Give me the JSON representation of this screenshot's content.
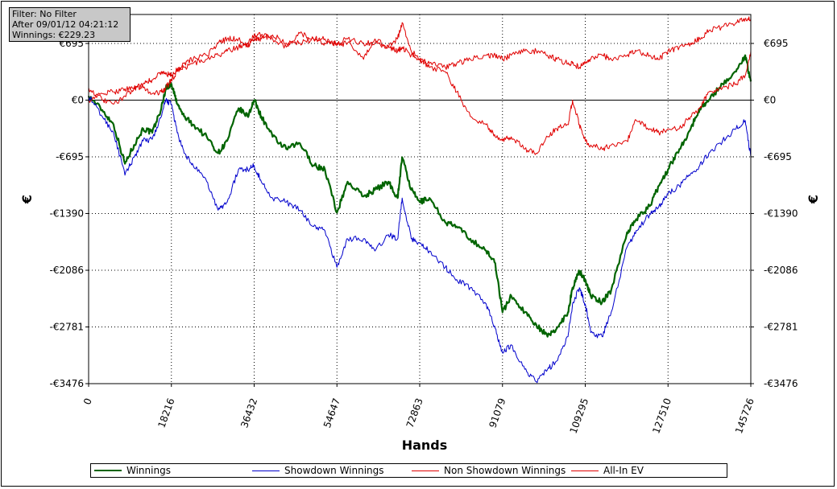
{
  "filter_box": {
    "line1": "Filter: No Filter",
    "line2": "After 09/01/12 04:21:12",
    "line3": "Winnings: €229.23"
  },
  "chart_data": {
    "type": "line",
    "title": "",
    "xlabel": "Hands",
    "ylabel": "€",
    "xlim": [
      0,
      145726
    ],
    "ylim": [
      -3476,
      1050
    ],
    "x_ticks": [
      0,
      18216,
      36432,
      54647,
      72863,
      91079,
      109295,
      127510,
      145726
    ],
    "y_ticks": [
      695,
      0,
      -695,
      -1390,
      -2086,
      -2781,
      -3476
    ],
    "y_tick_labels": [
      "€695",
      "€0",
      "-€695",
      "-€1390",
      "-€2086",
      "-€2781",
      "-€3476"
    ],
    "grid": true,
    "legend_position": "bottom",
    "series": [
      {
        "name": "Winnings",
        "color": "#006400",
        "x": [
          0,
          3000,
          5500,
          8000,
          10000,
          12000,
          14000,
          16000,
          17000,
          18216,
          19500,
          21000,
          23000,
          26000,
          28500,
          30500,
          33000,
          35000,
          36432,
          38000,
          40500,
          43500,
          46500,
          49500,
          52000,
          54647,
          57000,
          60500,
          63000,
          66000,
          68000,
          69000,
          71000,
          72863,
          75000,
          78500,
          81000,
          84000,
          87500,
          89500,
          91079,
          93000,
          96000,
          98500,
          101000,
          103000,
          105500,
          106500,
          108000,
          109295,
          110500,
          113000,
          115000,
          118500,
          120500,
          123500,
          125500,
          127510,
          130000,
          132500,
          134500,
          136500,
          139500,
          142500,
          144500,
          145726
        ],
        "y": [
          50,
          -120,
          -300,
          -780,
          -550,
          -350,
          -400,
          -100,
          150,
          200,
          -50,
          -200,
          -300,
          -450,
          -650,
          -500,
          -100,
          -200,
          0,
          -200,
          -450,
          -600,
          -530,
          -800,
          -850,
          -1380,
          -1000,
          -1180,
          -1100,
          -1000,
          -1200,
          -700,
          -1100,
          -1250,
          -1200,
          -1500,
          -1550,
          -1700,
          -1850,
          -2000,
          -2600,
          -2400,
          -2600,
          -2750,
          -2900,
          -2800,
          -2600,
          -2300,
          -2100,
          -2200,
          -2400,
          -2480,
          -2330,
          -1620,
          -1460,
          -1300,
          -1050,
          -850,
          -600,
          -350,
          -100,
          0,
          200,
          350,
          550,
          229
        ]
      },
      {
        "name": "Showdown Winnings",
        "color": "#0000cc",
        "x": [
          0,
          3000,
          5500,
          8000,
          10000,
          12000,
          14000,
          16000,
          17000,
          18216,
          19500,
          21000,
          23000,
          26000,
          28500,
          30500,
          33000,
          35000,
          36432,
          38000,
          40500,
          43500,
          46500,
          49500,
          52000,
          54647,
          57000,
          60500,
          63000,
          66000,
          68000,
          69000,
          71000,
          72863,
          75000,
          78500,
          81000,
          84000,
          87500,
          89500,
          91079,
          93000,
          96000,
          98500,
          101000,
          103000,
          105500,
          106500,
          108000,
          109295,
          110500,
          113000,
          115000,
          118500,
          120500,
          123500,
          125500,
          127510,
          130000,
          132500,
          134500,
          136500,
          139500,
          142500,
          144500,
          145726
        ],
        "y": [
          50,
          -200,
          -400,
          -920,
          -700,
          -500,
          -480,
          -200,
          0,
          -50,
          -400,
          -650,
          -800,
          -1000,
          -1350,
          -1250,
          -850,
          -850,
          -800,
          -1000,
          -1200,
          -1250,
          -1350,
          -1550,
          -1600,
          -2050,
          -1700,
          -1700,
          -1850,
          -1650,
          -1700,
          -1200,
          -1700,
          -1750,
          -1850,
          -2050,
          -2200,
          -2300,
          -2500,
          -2800,
          -3100,
          -3000,
          -3300,
          -3450,
          -3300,
          -3200,
          -2900,
          -2500,
          -2300,
          -2500,
          -2850,
          -2900,
          -2600,
          -1800,
          -1600,
          -1400,
          -1300,
          -1150,
          -1050,
          -900,
          -800,
          -650,
          -500,
          -350,
          -250,
          -700
        ]
      },
      {
        "name": "Non Showdown Winnings",
        "color": "#e00000",
        "x": [
          0,
          3000,
          5500,
          8000,
          10000,
          12000,
          14000,
          16000,
          17000,
          18216,
          19500,
          21000,
          23000,
          26000,
          28500,
          30500,
          33000,
          35000,
          36432,
          38000,
          40500,
          43500,
          46500,
          49500,
          52000,
          54647,
          57000,
          60500,
          63000,
          66000,
          68000,
          69000,
          71000,
          72863,
          75000,
          78500,
          81000,
          84000,
          87500,
          89500,
          91079,
          93000,
          96000,
          98500,
          101000,
          103000,
          105500,
          106500,
          108000,
          109295,
          110500,
          113000,
          115000,
          118500,
          120500,
          123500,
          125500,
          127510,
          130000,
          132500,
          134500,
          136500,
          139500,
          142500,
          144500,
          145726
        ],
        "y": [
          0,
          80,
          100,
          140,
          150,
          150,
          80,
          100,
          150,
          250,
          350,
          450,
          500,
          550,
          700,
          750,
          750,
          650,
          800,
          800,
          750,
          650,
          820,
          750,
          750,
          670,
          700,
          500,
          750,
          650,
          750,
          950,
          600,
          500,
          400,
          350,
          100,
          -200,
          -300,
          -450,
          -500,
          -450,
          -600,
          -650,
          -450,
          -350,
          -300,
          0,
          -300,
          -500,
          -550,
          -600,
          -550,
          -500,
          -250,
          -350,
          -400,
          -350,
          -350,
          -200,
          -100,
          100,
          150,
          200,
          300,
          600
        ]
      },
      {
        "name": "All-In EV",
        "color": "#e00000",
        "x": [
          0,
          3000,
          5500,
          8000,
          10000,
          12000,
          14000,
          16000,
          17000,
          18216,
          19500,
          21000,
          23000,
          26000,
          28500,
          30500,
          33000,
          35000,
          36432,
          38000,
          40500,
          43500,
          46500,
          49500,
          52000,
          54647,
          57000,
          60500,
          63000,
          66000,
          68000,
          69000,
          71000,
          72863,
          75000,
          78500,
          81000,
          84000,
          87500,
          89500,
          91079,
          93000,
          96000,
          98500,
          101000,
          103000,
          105500,
          106500,
          108000,
          109295,
          110500,
          113000,
          115000,
          118500,
          120500,
          123500,
          125500,
          127510,
          130000,
          132500,
          134500,
          136500,
          139500,
          142500,
          144500,
          145726
        ],
        "y": [
          150,
          0,
          -50,
          50,
          150,
          200,
          250,
          350,
          320,
          300,
          380,
          400,
          450,
          500,
          550,
          600,
          650,
          700,
          760,
          750,
          800,
          700,
          700,
          750,
          700,
          700,
          750,
          700,
          700,
          650,
          600,
          650,
          550,
          500,
          450,
          400,
          450,
          500,
          550,
          550,
          500,
          550,
          600,
          600,
          550,
          500,
          450,
          450,
          400,
          450,
          500,
          550,
          500,
          550,
          600,
          550,
          500,
          600,
          650,
          700,
          750,
          850,
          900,
          950,
          1000,
          1000
        ]
      }
    ]
  }
}
